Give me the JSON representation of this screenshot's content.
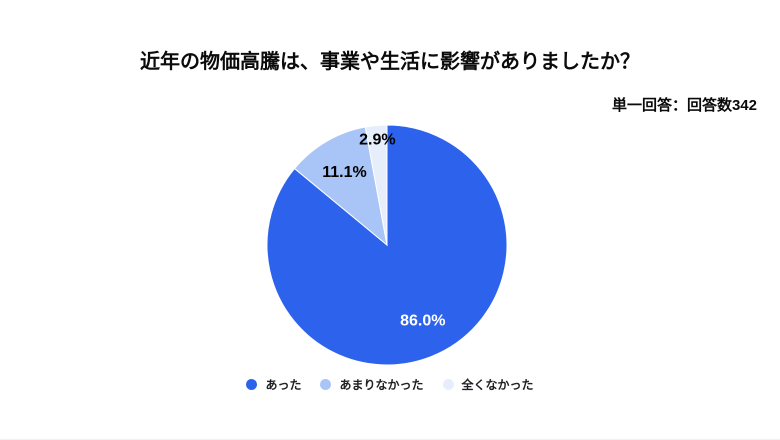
{
  "header": {
    "title": "近年の物価高騰は、事業や生活に影響がありましたか？",
    "note": "単一回答：回答数342"
  },
  "chart_data": {
    "type": "pie",
    "title": "近年の物価高騰は、事業や生活に影響がありましたか？",
    "subtitle": "単一回答：回答数342",
    "response_count": 342,
    "categories": [
      "あった",
      "あまりなかった",
      "全くなかった"
    ],
    "values": [
      86.0,
      11.1,
      2.9
    ],
    "labels": [
      "86.0%",
      "11.1%",
      "2.9%"
    ],
    "unit": "%",
    "colors": [
      "#2d63ec",
      "#a9c5f7",
      "#e6eefb"
    ],
    "label_colors": [
      "#ffffff",
      "#000000",
      "#000000"
    ],
    "label_radius": [
      0.7,
      0.7,
      0.88
    ],
    "start_angle": 0,
    "direction": "clockwise",
    "legend_position": "bottom",
    "slice_border_color": "#ffffff"
  }
}
